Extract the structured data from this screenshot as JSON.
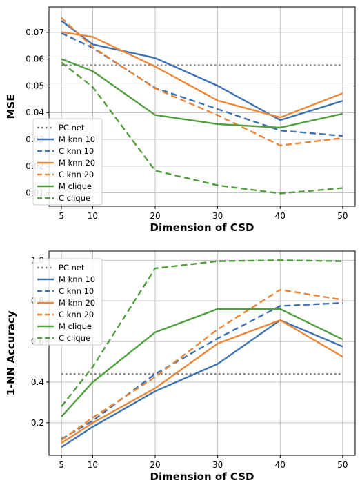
{
  "chart_data": [
    {
      "type": "line",
      "title": "",
      "xlabel": "Dimension of CSD",
      "ylabel": "MSE",
      "x": [
        5,
        10,
        20,
        30,
        40,
        50
      ],
      "x_ticks": [
        "5",
        "10",
        "20",
        "30",
        "40",
        "50"
      ],
      "y_ticks": [
        "0.01",
        "0.02",
        "0.03",
        "0.04",
        "0.05",
        "0.06",
        "0.07"
      ],
      "xlim": [
        3,
        52
      ],
      "ylim": [
        0.005,
        0.0795
      ],
      "grid": true,
      "legend_position": "lower-left",
      "series": [
        {
          "name": "PC net",
          "color": "#808080",
          "dash": "dotted",
          "values": [
            0.0577,
            0.0577,
            0.0577,
            0.0577,
            0.0577,
            0.0577
          ]
        },
        {
          "name": "M knn 10",
          "color": "#3d72b3",
          "dash": "solid",
          "values": [
            0.0743,
            0.0655,
            0.0604,
            0.05,
            0.0372,
            0.0444
          ]
        },
        {
          "name": "C knn 10",
          "color": "#3d72b3",
          "dash": "dashed",
          "values": [
            0.0697,
            0.0642,
            0.0492,
            0.0413,
            0.0333,
            0.0313
          ]
        },
        {
          "name": "M knn 20",
          "color": "#ef8636",
          "dash": "solid",
          "values": [
            0.0701,
            0.0683,
            0.0572,
            0.0445,
            0.0382,
            0.0472
          ]
        },
        {
          "name": "C knn 20",
          "color": "#ef8636",
          "dash": "dashed",
          "values": [
            0.0754,
            0.0645,
            0.049,
            0.039,
            0.0277,
            0.0305
          ]
        },
        {
          "name": "M clique",
          "color": "#519e3e",
          "dash": "solid",
          "values": [
            0.06,
            0.0555,
            0.0391,
            0.0357,
            0.0344,
            0.0396
          ]
        },
        {
          "name": "C clique",
          "color": "#519e3e",
          "dash": "dashed",
          "values": [
            0.0587,
            0.0496,
            0.0183,
            0.0128,
            0.0098,
            0.0118
          ]
        }
      ]
    },
    {
      "type": "line",
      "title": "",
      "xlabel": "Dimension of CSD",
      "ylabel": "1-NN Accuracy",
      "x": [
        5,
        10,
        20,
        30,
        40,
        50
      ],
      "x_ticks": [
        "5",
        "10",
        "20",
        "30",
        "40",
        "50"
      ],
      "y_ticks": [
        "0.2",
        "0.4",
        "0.6",
        "0.8",
        "1.0"
      ],
      "xlim": [
        3,
        52
      ],
      "ylim": [
        0.04,
        1.045
      ],
      "grid": true,
      "legend_position": "upper-left",
      "series": [
        {
          "name": "PC net",
          "color": "#808080",
          "dash": "dotted",
          "values": [
            0.44,
            0.44,
            0.44,
            0.44,
            0.44,
            0.44
          ]
        },
        {
          "name": "M knn 10",
          "color": "#3d72b3",
          "dash": "solid",
          "values": [
            0.08,
            0.18,
            0.355,
            0.49,
            0.705,
            0.575
          ]
        },
        {
          "name": "C knn 10",
          "color": "#3d72b3",
          "dash": "dashed",
          "values": [
            0.12,
            0.21,
            0.44,
            0.615,
            0.775,
            0.79
          ]
        },
        {
          "name": "M knn 20",
          "color": "#ef8636",
          "dash": "solid",
          "values": [
            0.1,
            0.2,
            0.37,
            0.59,
            0.705,
            0.525
          ]
        },
        {
          "name": "C knn 20",
          "color": "#ef8636",
          "dash": "dashed",
          "values": [
            0.115,
            0.225,
            0.425,
            0.66,
            0.855,
            0.805
          ]
        },
        {
          "name": "M clique",
          "color": "#519e3e",
          "dash": "solid",
          "values": [
            0.23,
            0.4,
            0.645,
            0.76,
            0.76,
            0.61
          ]
        },
        {
          "name": "C clique",
          "color": "#519e3e",
          "dash": "dashed",
          "values": [
            0.28,
            0.475,
            0.96,
            0.995,
            1.0,
            0.995
          ]
        }
      ]
    }
  ]
}
